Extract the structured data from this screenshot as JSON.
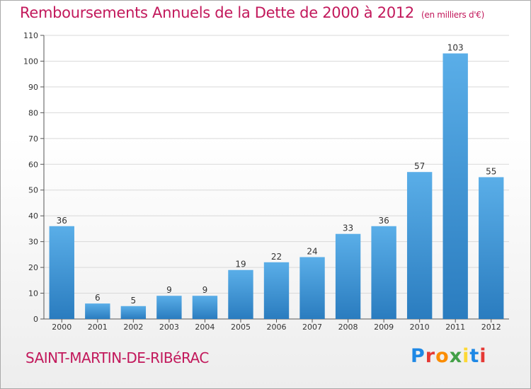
{
  "title": {
    "main": "Remboursements Annuels de la Dette de 2000 à 2012",
    "unit": "(en milliers d'€)"
  },
  "commune": "SAINT-MARTIN-DE-RIBéRAC",
  "logo": {
    "text": "Proxiti",
    "colors": [
      "#1e88e5",
      "#e53935",
      "#fb8c00",
      "#43a047",
      "#fdd835",
      "#1e88e5",
      "#e53935"
    ]
  },
  "colors": {
    "bar_top": "#5aaee8",
    "bar_bottom": "#2a7cbf",
    "title": "#c2185b",
    "grid": "#d9d9d9"
  },
  "chart_data": {
    "type": "bar",
    "title": "Remboursements Annuels de la Dette de 2000 à 2012",
    "xlabel": "",
    "ylabel": "",
    "categories": [
      "2000",
      "2001",
      "2002",
      "2003",
      "2004",
      "2005",
      "2006",
      "2007",
      "2008",
      "2009",
      "2010",
      "2011",
      "2012"
    ],
    "values": [
      36,
      6,
      5,
      9,
      9,
      19,
      22,
      24,
      33,
      36,
      57,
      103,
      55
    ],
    "ylim": [
      0,
      110
    ],
    "yticks": [
      0,
      10,
      20,
      30,
      40,
      50,
      60,
      70,
      80,
      90,
      100,
      110
    ],
    "grid": true
  }
}
